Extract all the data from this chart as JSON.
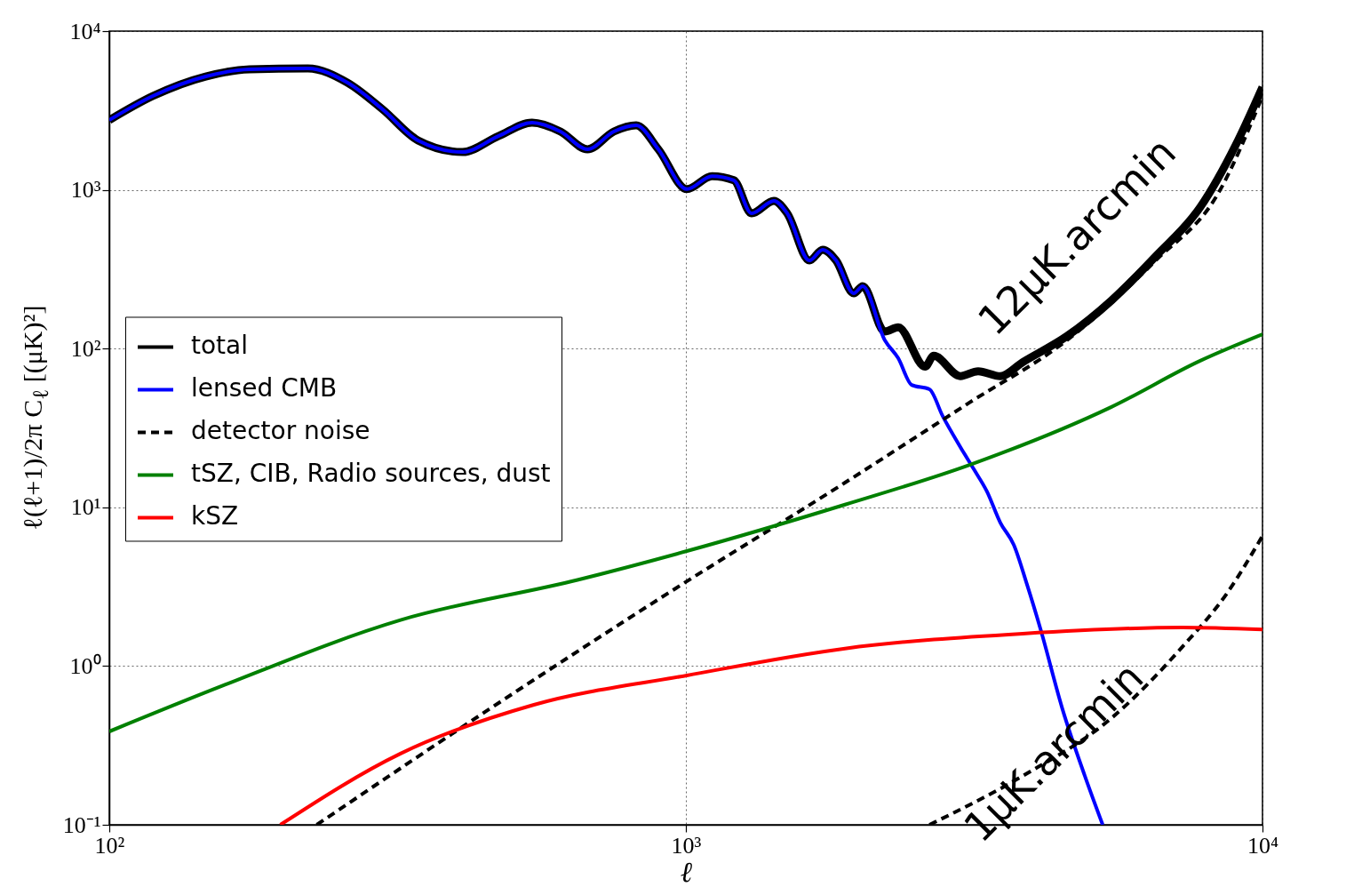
{
  "chart_data": {
    "type": "line",
    "xlabel": "ℓ",
    "ylabel": "ℓ(ℓ+1)/2π C$_{ℓ}$ [(μK)²]",
    "log": "xy",
    "grid": true,
    "legend": "left",
    "xlim": [
      100,
      10000
    ],
    "xticks": [
      {
        "value": 100,
        "label": "10²"
      },
      {
        "value": 1000,
        "label": "10³"
      },
      {
        "value": 10000,
        "label": "10⁴"
      }
    ],
    "ylim": [
      0.1,
      10000
    ],
    "yticks": [
      {
        "value": 0.1,
        "label": "10⁻¹"
      },
      {
        "value": 1,
        "label": "10⁰"
      },
      {
        "value": 10,
        "label": "10¹"
      },
      {
        "value": 100,
        "label": "10²"
      },
      {
        "value": 1000,
        "label": "10³"
      },
      {
        "value": 10000,
        "label": "10⁴"
      }
    ],
    "annotations": [
      "12μK.arcmin",
      "1μK.arcmin"
    ],
    "series": [
      {
        "name": "total",
        "color": "#000000",
        "line_style": "solid",
        "x": [
          100,
          119,
          147,
          175,
          221,
          259,
          298,
          343,
          410,
          473,
          541,
          606,
          675,
          750,
          820,
          896,
          1004,
          1110,
          1211,
          1300,
          1421,
          1499,
          1638,
          1727,
          1821,
          1955,
          2026,
          2213,
          2335,
          2600,
          2690,
          2992,
          3213,
          3510,
          3838,
          4584,
          5471,
          6534,
          7800,
          8990,
          10000
        ],
        "values": [
          2750,
          3900,
          5180,
          5740,
          5820,
          4730,
          3210,
          2050,
          1730,
          2180,
          2650,
          2330,
          1800,
          2330,
          2550,
          1800,
          1010,
          1220,
          1150,
          711,
          853,
          711,
          359,
          420,
          360,
          223,
          247,
          128,
          136,
          77,
          90,
          67,
          72,
          67,
          82,
          120,
          201,
          383,
          778,
          1920,
          4440
        ]
      },
      {
        "name": "lensed CMB",
        "color": "#0000ff",
        "line_style": "solid",
        "x": [
          100,
          119,
          147,
          175,
          221,
          259,
          298,
          343,
          410,
          473,
          541,
          606,
          675,
          750,
          820,
          896,
          1004,
          1110,
          1211,
          1300,
          1421,
          1499,
          1638,
          1727,
          1821,
          1955,
          2026,
          2213,
          2335,
          2463,
          2645,
          2787,
          2992,
          3157,
          3327,
          3510,
          3704,
          3906,
          4121,
          4500,
          4920,
          5283
        ],
        "values": [
          2750,
          3900,
          5180,
          5740,
          5820,
          4730,
          3210,
          2050,
          1730,
          2180,
          2650,
          2330,
          1800,
          2330,
          2550,
          1800,
          1010,
          1220,
          1150,
          711,
          853,
          711,
          359,
          420,
          360,
          223,
          247,
          113,
          87,
          59,
          55.4,
          37.7,
          24,
          17.4,
          12.6,
          8,
          5.8,
          3.25,
          1.71,
          0.534,
          0.203,
          0.1
        ]
      },
      {
        "name": "detector noise",
        "color": "#000000",
        "line_style": "dashed",
        "x": [
          229,
          456,
          929,
          1888,
          3104,
          4584,
          6530,
          8370,
          10000
        ],
        "values": [
          0.1,
          0.535,
          2.86,
          14.3,
          45.7,
          113,
          359,
          944,
          3900
        ]
      },
      {
        "color": "#000000",
        "line_style": "dashed",
        "x": [
          2645,
          3838,
          5471,
          7260,
          8670,
          10000
        ],
        "values": [
          0.1,
          0.203,
          0.47,
          1.32,
          2.86,
          6.6
        ]
      },
      {
        "name": "tSZ, CIB, Radio sources, dust",
        "color": "#008000",
        "line_style": "solid",
        "x": [
          100,
          157,
          320,
          651,
          1004,
          1888,
          3104,
          5471,
          7800,
          10000
        ],
        "values": [
          0.387,
          0.75,
          1.95,
          3.5,
          5.3,
          10.4,
          18.5,
          42.9,
          83.8,
          123
        ]
      },
      {
        "name": "kSZ",
        "color": "#ff0000",
        "line_style": "solid",
        "x": [
          198,
          320,
          545,
          1004,
          1888,
          3838,
          7260,
          10000
        ],
        "values": [
          0.1,
          0.281,
          0.57,
          0.873,
          1.29,
          1.6,
          1.75,
          1.7
        ]
      }
    ]
  }
}
